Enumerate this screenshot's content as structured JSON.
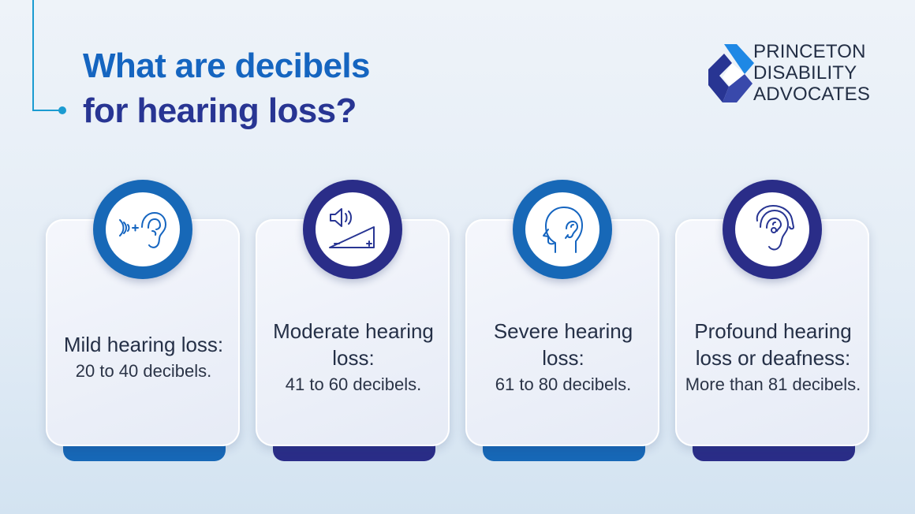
{
  "title": {
    "line1": "What are decibels",
    "line2": "for hearing loss?"
  },
  "logo": {
    "line1": "PRINCETON",
    "line2": "DISABILITY",
    "line3": "ADVOCATES"
  },
  "colors": {
    "title_blue": "#1565c0",
    "title_navy": "#283593",
    "accent_blue": "#1768b7",
    "accent_navy": "#2a2d88",
    "line_cyan": "#1b9bd1"
  },
  "cards": [
    {
      "icon": "ear-sound-wave-icon",
      "heading": "Mild hearing loss:",
      "desc": "20 to 40 decibels."
    },
    {
      "icon": "volume-speaker-icon",
      "heading": "Moderate hearing loss:",
      "desc": "41 to 60 decibels."
    },
    {
      "icon": "head-hearing-aid-icon",
      "heading": "Severe hearing loss:",
      "desc": "61 to 80 decibels."
    },
    {
      "icon": "hearing-aid-ear-icon",
      "heading": "Profound hearing loss or deafness:",
      "desc": "More than 81 decibels."
    }
  ]
}
